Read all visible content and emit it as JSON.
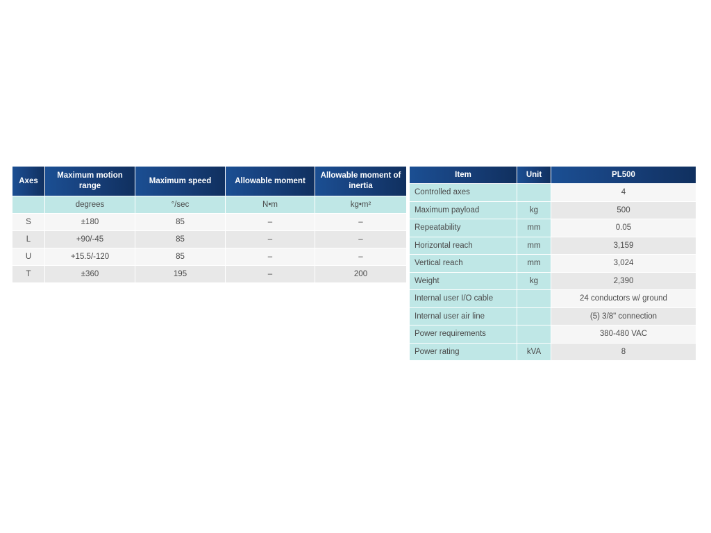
{
  "axes_table": {
    "headers": [
      "Axes",
      "Maximum motion range",
      "Maximum speed",
      "Allowable moment",
      "Allowable moment of inertia"
    ],
    "units": [
      "",
      "degrees",
      "°/sec",
      "N•m",
      "kg•m²"
    ],
    "rows": [
      [
        "S",
        "±180",
        "85",
        "–",
        "–"
      ],
      [
        "L",
        "+90/-45",
        "85",
        "–",
        "–"
      ],
      [
        "U",
        "+15.5/-120",
        "85",
        "–",
        "–"
      ],
      [
        "T",
        "±360",
        "195",
        "–",
        "200"
      ]
    ]
  },
  "spec_table": {
    "headers": [
      "Item",
      "Unit",
      "PL500"
    ],
    "rows": [
      [
        "Controlled axes",
        "",
        "4"
      ],
      [
        "Maximum payload",
        "kg",
        "500"
      ],
      [
        "Repeatability",
        "mm",
        "0.05"
      ],
      [
        "Horizontal reach",
        "mm",
        "3,159"
      ],
      [
        "Vertical reach",
        "mm",
        "3,024"
      ],
      [
        "Weight",
        "kg",
        "2,390"
      ],
      [
        "Internal user I/O cable",
        "",
        "24 conductors w/ ground"
      ],
      [
        "Internal user air line",
        "",
        "(5) 3/8\" connection"
      ],
      [
        "Power requirements",
        "",
        "380-480 VAC"
      ],
      [
        "Power rating",
        "kVA",
        "8"
      ]
    ]
  }
}
